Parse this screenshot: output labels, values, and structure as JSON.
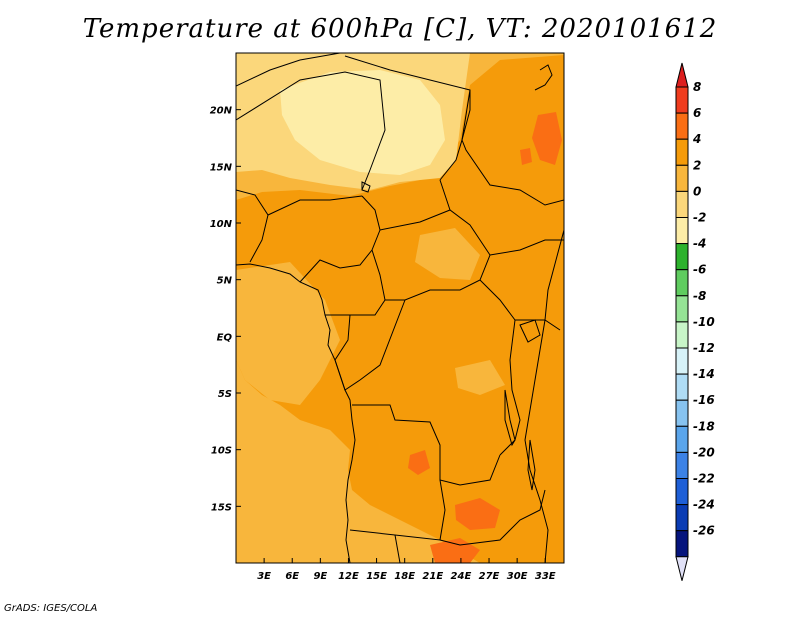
{
  "title": "Temperature at 600hPa [C], VT: 2020101612",
  "credit": "GrADS: IGES/COLA",
  "map": {
    "lon_range": [
      0,
      35
    ],
    "lat_range": [
      -20,
      25
    ],
    "lon_ticks": [
      {
        "lon": 3,
        "label": "3E"
      },
      {
        "lon": 6,
        "label": "6E"
      },
      {
        "lon": 9,
        "label": "9E"
      },
      {
        "lon": 12,
        "label": "12E"
      },
      {
        "lon": 15,
        "label": "15E"
      },
      {
        "lon": 18,
        "label": "18E"
      },
      {
        "lon": 21,
        "label": "21E"
      },
      {
        "lon": 24,
        "label": "24E"
      },
      {
        "lon": 27,
        "label": "27E"
      },
      {
        "lon": 30,
        "label": "30E"
      },
      {
        "lon": 33,
        "label": "33E"
      }
    ],
    "lat_ticks": [
      {
        "lat": 20,
        "label": "20N"
      },
      {
        "lat": 15,
        "label": "15N"
      },
      {
        "lat": 10,
        "label": "10N"
      },
      {
        "lat": 5,
        "label": "5N"
      },
      {
        "lat": 0,
        "label": "EQ"
      },
      {
        "lat": -5,
        "label": "5S"
      },
      {
        "lat": -10,
        "label": "10S"
      },
      {
        "lat": -15,
        "label": "15S"
      }
    ]
  },
  "colorbar": {
    "labels": [
      "8",
      "6",
      "4",
      "2",
      "0",
      "-2",
      "-4",
      "-6",
      "-8",
      "-10",
      "-12",
      "-14",
      "-16",
      "-18",
      "-20",
      "-22",
      "-24",
      "-26"
    ],
    "colors": [
      "#f03c1e",
      "#fa6e14",
      "#f59b0a",
      "#f8b63c",
      "#fbd77b",
      "#fdeda7",
      "#2db22d",
      "#5fcc5f",
      "#95e395",
      "#c8f5c8",
      "#d7f2f8",
      "#afdcf5",
      "#87c3f0",
      "#5aa5eb",
      "#3c82e6",
      "#1e5fd7",
      "#0a3cb4",
      "#05147d"
    ],
    "top_triangle": "#dc1e1e",
    "bottom_triangle": "#e1e1f7"
  },
  "legend_colors": {
    "t_minus2_0": "#fdeda7",
    "t_0_2": "#fbd77b",
    "t_2_4": "#f8b63c",
    "t_4_6": "#f59b0a",
    "t_6_8": "#fa6e14",
    "coast_border": "#000000"
  }
}
